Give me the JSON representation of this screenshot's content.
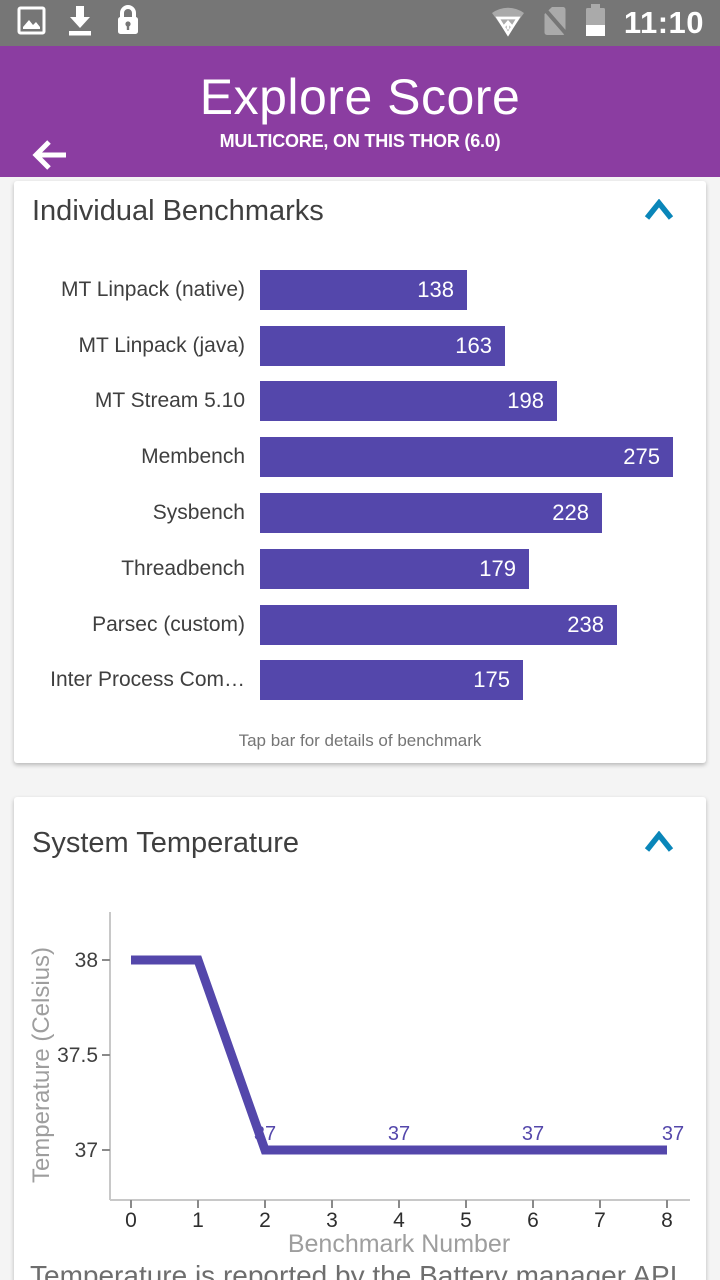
{
  "status_bar": {
    "time": "11:10",
    "icons_left": [
      "image-icon",
      "download-icon",
      "lock-icon"
    ],
    "icons_right": [
      "wifi-problem-icon",
      "no-sim-icon",
      "battery-icon"
    ]
  },
  "header": {
    "title": "Explore Score",
    "subtitle": "MULTICORE, ON THIS THOR (6.0)"
  },
  "benchmarks_card": {
    "title": "Individual Benchmarks",
    "caption": "Tap bar for details of benchmark"
  },
  "temperature_card": {
    "title": "System Temperature",
    "footnote": "Temperature is reported by the Battery manager API"
  },
  "chart_data": [
    {
      "type": "bar",
      "title": "Individual Benchmarks",
      "orientation": "horizontal",
      "categories": [
        "MT Linpack (native)",
        "MT Linpack (java)",
        "MT Stream 5.10",
        "Membench",
        "Sysbench",
        "Threadbench",
        "Parsec (custom)",
        "Inter Process Com…"
      ],
      "values": [
        138,
        163,
        198,
        275,
        228,
        179,
        238,
        175
      ],
      "bar_color": "#5447ab",
      "value_labels_inside": true,
      "caption": "Tap bar for details of benchmark"
    },
    {
      "type": "line",
      "title": "System Temperature",
      "xlabel": "Benchmark Number",
      "ylabel": "Temperature (Celsius)",
      "x": [
        0,
        1,
        2,
        3,
        4,
        5,
        6,
        7,
        8
      ],
      "y": [
        38,
        38,
        37,
        37,
        37,
        37,
        37,
        37,
        37
      ],
      "xticks": [
        "0",
        "1",
        "2",
        "3",
        "4",
        "5",
        "6",
        "7",
        "8"
      ],
      "yticks": [
        "37",
        "37.5",
        "38"
      ],
      "xlim": [
        0,
        8
      ],
      "ylim": [
        36.75,
        38.3
      ],
      "point_labels": [
        {
          "x": 2,
          "text": "37"
        },
        {
          "x": 4,
          "text": "37"
        },
        {
          "x": 6,
          "text": "37"
        },
        {
          "x": 8,
          "text": "37"
        }
      ],
      "line_color": "#5447ab",
      "grid": false,
      "legend": "none"
    }
  ],
  "colors": {
    "header_purple": "#8b3da1",
    "status_bar_gray": "#767676",
    "dim_icon_gray": "#aaaaaa",
    "accent_indigo": "#5447ab",
    "chevron_blue": "#0a86b9",
    "page_background": "#f4f4f4",
    "card_background": "#ffffff",
    "text_dark": "#3f3f3f",
    "text_gray": "#757575",
    "axis_label_gray": "#9e9e9e",
    "axis_line_gray": "#c8c8c8"
  }
}
